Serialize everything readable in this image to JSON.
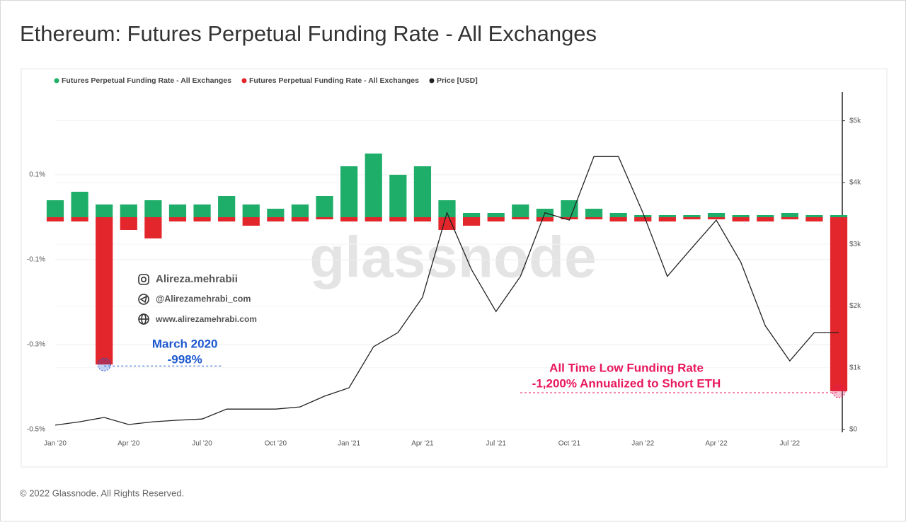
{
  "chart_data": {
    "type": "combo",
    "title": "Ethereum: Futures Perpetual Funding Rate - All Exchanges",
    "footer": "© 2022 Glassnode. All Rights Reserved.",
    "watermark": "glassnode",
    "credits": [
      "Alireza.mehrabii",
      "@Alirezamehrabi_com",
      "www.alirezamehrabi.com"
    ],
    "x": [
      "2020-01",
      "2020-02",
      "2020-03",
      "2020-04",
      "2020-05",
      "2020-06",
      "2020-07",
      "2020-08",
      "2020-09",
      "2020-10",
      "2020-11",
      "2020-12",
      "2021-01",
      "2021-02",
      "2021-03",
      "2021-04",
      "2021-05",
      "2021-06",
      "2021-07",
      "2021-08",
      "2021-09",
      "2021-10",
      "2021-11",
      "2021-12",
      "2022-01",
      "2022-02",
      "2022-03",
      "2022-04",
      "2022-05",
      "2022-06",
      "2022-07",
      "2022-08",
      "2022-09"
    ],
    "xlim": [
      "2020-01",
      "2022-09"
    ],
    "xticks": [
      {
        "value": "2020-01",
        "label": "Jan '20"
      },
      {
        "value": "2020-04",
        "label": "Apr '20"
      },
      {
        "value": "2020-07",
        "label": "Jul '20"
      },
      {
        "value": "2020-10",
        "label": "Oct '20"
      },
      {
        "value": "2021-01",
        "label": "Jan '21"
      },
      {
        "value": "2021-04",
        "label": "Apr '21"
      },
      {
        "value": "2021-07",
        "label": "Jul '21"
      },
      {
        "value": "2021-10",
        "label": "Oct '21"
      },
      {
        "value": "2022-01",
        "label": "Jan '22"
      },
      {
        "value": "2022-04",
        "label": "Apr '22"
      },
      {
        "value": "2022-07",
        "label": "Jul '22"
      }
    ],
    "ylim": [
      -0.5,
      0.3
    ],
    "yticks": [
      {
        "value": 0.1,
        "label": "0.1%"
      },
      {
        "value": -0.1,
        "label": "-0.1%"
      },
      {
        "value": -0.3,
        "label": "-0.3%"
      },
      {
        "value": -0.5,
        "label": "-0.5%"
      }
    ],
    "y2lim": [
      0,
      5500
    ],
    "y2ticks": [
      {
        "value": 0,
        "label": "$0"
      },
      {
        "value": 1000,
        "label": "$1k"
      },
      {
        "value": 2000,
        "label": "$2k"
      },
      {
        "value": 3000,
        "label": "$3k"
      },
      {
        "value": 4000,
        "label": "$4k"
      },
      {
        "value": 5000,
        "label": "$5k"
      }
    ],
    "grid": true,
    "series": [
      {
        "name": "Futures Perpetual Funding Rate - All Exchanges",
        "type": "bar",
        "color": "#1fae6a",
        "values": [
          0.04,
          0.06,
          0.03,
          0.03,
          0.04,
          0.03,
          0.03,
          0.05,
          0.03,
          0.02,
          0.03,
          0.05,
          0.12,
          0.15,
          0.1,
          0.12,
          0.04,
          0.01,
          0.01,
          0.03,
          0.02,
          0.04,
          0.02,
          0.01,
          0.005,
          0.005,
          0.005,
          0.01,
          0.005,
          0.005,
          0.01,
          0.005,
          0.005
        ]
      },
      {
        "name": "Futures Perpetual Funding Rate - All Exchanges",
        "type": "bar",
        "color": "#e3262b",
        "values": [
          -0.01,
          -0.01,
          -0.347,
          -0.03,
          -0.05,
          -0.01,
          -0.01,
          -0.01,
          -0.02,
          -0.01,
          -0.01,
          -0.005,
          -0.01,
          -0.01,
          -0.01,
          -0.01,
          -0.03,
          -0.02,
          -0.01,
          -0.005,
          -0.01,
          -0.005,
          -0.005,
          -0.01,
          -0.01,
          -0.01,
          -0.005,
          -0.005,
          -0.01,
          -0.01,
          -0.005,
          -0.01,
          -0.41
        ]
      },
      {
        "name": "Price [USD]",
        "type": "line",
        "color": "#222222",
        "axis": "y2",
        "values": [
          70,
          125,
          195,
          80,
          125,
          150,
          170,
          330,
          330,
          330,
          365,
          540,
          675,
          1340,
          1570,
          2140,
          3510,
          2590,
          1910,
          2480,
          3510,
          3390,
          4420,
          4420,
          3510,
          2480,
          2940,
          3390,
          2710,
          1680,
          1110,
          1570,
          1570
        ]
      }
    ],
    "annotations": [
      {
        "lines": [
          "March 2020",
          "-998%"
        ],
        "color": "#1c58cf"
      },
      {
        "lines": [
          "All Time Low Funding Rate",
          "-1,200% Annualized to Short ETH"
        ],
        "color": "#e8175d"
      }
    ]
  }
}
